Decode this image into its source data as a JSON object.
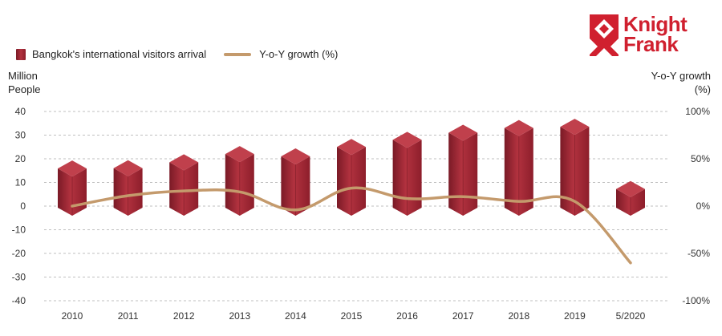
{
  "logo": {
    "line1": "Knight",
    "line2": "Frank",
    "color": "#d0202f"
  },
  "legend": {
    "bar_label": "Bangkok's international visitors arrival",
    "line_label": "Y-o-Y growth (%)"
  },
  "axes": {
    "left_title_line1": "Million",
    "left_title_line2": "People",
    "right_title_line1": "Y-o-Y growth",
    "right_title_line2": "(%)"
  },
  "colors": {
    "bar_light": "#c0404c",
    "bar_mid": "#a82a36",
    "bar_dark": "#7a1a26",
    "line": "#c49a6c",
    "grid": "#bfbfbf"
  },
  "chart_data": {
    "type": "bar",
    "categories": [
      "2010",
      "2011",
      "2012",
      "2013",
      "2014",
      "2015",
      "2016",
      "2017",
      "2018",
      "2019",
      "5/2020"
    ],
    "series": [
      {
        "name": "Bangkok's international visitors arrival",
        "type": "bar",
        "axis": "left",
        "values": [
          15.9,
          16.0,
          18.5,
          22.0,
          21.0,
          25.0,
          28.0,
          31.0,
          33.0,
          33.5,
          4.5
        ]
      },
      {
        "name": "Y-o-Y growth (%)",
        "type": "line",
        "axis": "right",
        "values": [
          0,
          11,
          16,
          15,
          -4,
          19,
          8,
          10,
          5,
          5,
          -60
        ]
      }
    ],
    "left_axis": {
      "range": [
        -40,
        40
      ],
      "ticks": [
        "40",
        "30",
        "20",
        "10",
        "0",
        "-10",
        "-20",
        "-30",
        "-40"
      ]
    },
    "right_axis": {
      "range": [
        -100,
        100
      ],
      "ticks": [
        "100%",
        "50%",
        "0%",
        "-50%",
        "-100%"
      ]
    },
    "grid": true,
    "legend_position": "top-left"
  }
}
